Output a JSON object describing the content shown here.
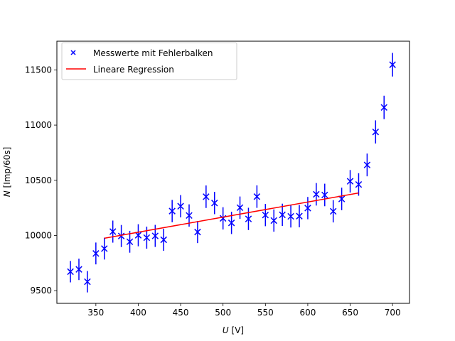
{
  "chart_data": {
    "type": "scatter",
    "title": "",
    "xlabel": "U [V]",
    "ylabel": "N [Imp/60s]",
    "xlim": [
      304,
      720
    ],
    "ylim": [
      9385,
      11760
    ],
    "xticks": [
      350,
      400,
      450,
      500,
      550,
      600,
      650,
      700
    ],
    "yticks": [
      9500,
      10000,
      10500,
      11000,
      11500
    ],
    "grid": false,
    "legend_position": "upper left",
    "legend": [
      {
        "label": "Messwerte mit Fehlerbalken",
        "marker": "x",
        "color": "#0000ff"
      },
      {
        "label": "Lineare Regression",
        "marker": "line",
        "color": "#ff0000"
      }
    ],
    "series": [
      {
        "name": "Messwerte mit Fehlerbalken",
        "color": "#0000ff",
        "x": [
          320,
          330,
          340,
          350,
          360,
          370,
          380,
          390,
          400,
          410,
          420,
          430,
          440,
          450,
          460,
          470,
          480,
          490,
          500,
          510,
          520,
          530,
          540,
          550,
          560,
          570,
          580,
          590,
          600,
          610,
          620,
          630,
          640,
          650,
          660,
          670,
          680,
          690,
          700
        ],
        "y": [
          9672,
          9693,
          9581,
          9837,
          9881,
          10035,
          9995,
          9943,
          10002,
          9980,
          9996,
          9961,
          10221,
          10265,
          10181,
          10031,
          10351,
          10294,
          10155,
          10114,
          10252,
          10150,
          10352,
          10185,
          10135,
          10187,
          10173,
          10175,
          10248,
          10373,
          10367,
          10219,
          10331,
          10491,
          10462,
          10639,
          10938,
          11160,
          11547
        ],
        "err": [
          97,
          97,
          97,
          99,
          99,
          100,
          100,
          99,
          100,
          100,
          100,
          100,
          101,
          101,
          101,
          100,
          102,
          101,
          101,
          101,
          101,
          101,
          102,
          101,
          101,
          101,
          101,
          101,
          101,
          102,
          102,
          101,
          102,
          102,
          102,
          103,
          105,
          106,
          107
        ]
      },
      {
        "name": "Lineare Regression",
        "color": "#ff0000",
        "x": [
          360,
          660
        ],
        "y": [
          9975,
          10385
        ]
      }
    ]
  }
}
